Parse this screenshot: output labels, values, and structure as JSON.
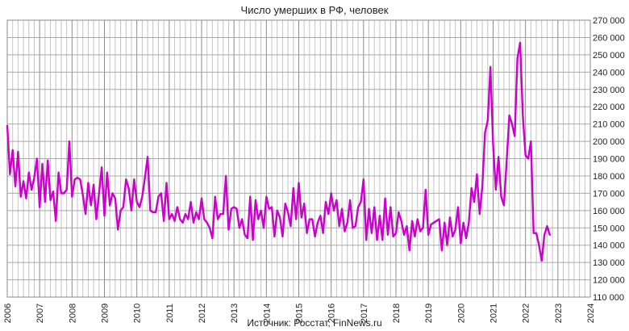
{
  "chart_data": {
    "type": "line",
    "title": "Число умерших в РФ, человек",
    "source": "Источник: Росстат, FinNews.ru",
    "x_unit": "month",
    "x_start": "2006-01",
    "xlim_years": [
      2006,
      2024
    ],
    "x_tick_labels": [
      "2006",
      "2007",
      "2008",
      "2009",
      "2010",
      "2011",
      "2012",
      "2013",
      "2014",
      "2015",
      "2016",
      "2017",
      "2018",
      "2019",
      "2020",
      "2021",
      "2022",
      "2023",
      "2024"
    ],
    "ylim": [
      110000,
      270000
    ],
    "y_step": 10000,
    "y_tick_labels": [
      "110 000",
      "120 000",
      "130 000",
      "140 000",
      "150 000",
      "160 000",
      "170 000",
      "180 000",
      "190 000",
      "200 000",
      "210 000",
      "220 000",
      "230 000",
      "240 000",
      "250 000",
      "260 000",
      "270 000"
    ],
    "grid": true,
    "series": [
      {
        "color": "#cc00cc",
        "values": [
          209000,
          181000,
          195000,
          174000,
          194000,
          168000,
          177000,
          167000,
          182000,
          172000,
          179000,
          190000,
          162000,
          187000,
          165000,
          189000,
          166000,
          171000,
          154000,
          182000,
          170000,
          170000,
          172000,
          200000,
          168000,
          178000,
          179000,
          178000,
          169000,
          158000,
          176000,
          163000,
          175000,
          155000,
          170000,
          185000,
          157000,
          182000,
          163000,
          170000,
          167000,
          149000,
          160000,
          162000,
          178000,
          173000,
          160000,
          178000,
          165000,
          162000,
          168000,
          179000,
          191000,
          160000,
          159000,
          159000,
          168000,
          170000,
          154000,
          176000,
          155000,
          158000,
          154000,
          162000,
          155000,
          153000,
          158000,
          155000,
          165000,
          153000,
          159000,
          155000,
          167000,
          155000,
          153000,
          150000,
          144000,
          168000,
          155000,
          158000,
          158000,
          180000,
          149000,
          161000,
          162000,
          161000,
          150000,
          155000,
          146000,
          144000,
          168000,
          143000,
          166000,
          155000,
          160000,
          150000,
          168000,
          161000,
          162000,
          145000,
          160000,
          156000,
          145000,
          164000,
          159000,
          151000,
          173000,
          155000,
          176000,
          156000,
          164000,
          147000,
          155000,
          155000,
          145000,
          153000,
          157000,
          147000,
          165000,
          158000,
          170000,
          160000,
          166000,
          151000,
          161000,
          148000,
          153000,
          166000,
          150000,
          151000,
          162000,
          165000,
          178000,
          143000,
          161000,
          147000,
          162000,
          143000,
          157000,
          143000,
          167000,
          146000,
          162000,
          145000,
          147000,
          159000,
          154000,
          146000,
          151000,
          137000,
          154000,
          145000,
          155000,
          148000,
          150000,
          172000,
          146000,
          152000,
          153000,
          154000,
          155000,
          137000,
          153000,
          140000,
          156000,
          145000,
          149000,
          162000,
          141000,
          153000,
          144000,
          153000,
          173000,
          165000,
          181000,
          158000,
          174000,
          205000,
          212000,
          243000,
          198000,
          172000,
          191000,
          168000,
          163000,
          188000,
          215000,
          210000,
          203000,
          248000,
          257000,
          215000,
          192000,
          190000,
          200000,
          147000,
          147000,
          140000,
          131000,
          146000,
          151000,
          146000
        ]
      }
    ]
  }
}
